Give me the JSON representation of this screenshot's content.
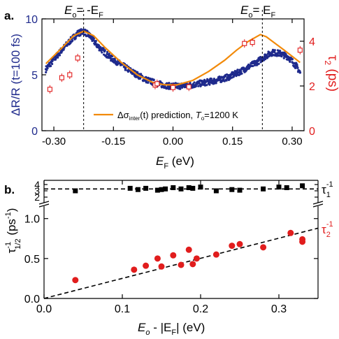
{
  "colors": {
    "dots": "#1f2a8c",
    "prediction": "#f28a0a",
    "tau2": "#e11d1d",
    "tau1": "#000000",
    "left_axis": "#1f2a8c",
    "right_axis": "#e11d1d"
  },
  "chart_data": [
    {
      "panel": "a.",
      "type": "scatter",
      "xlabel_main": "E",
      "xlabel_sub": "F",
      "xlabel_unit": " (eV)",
      "xlim": [
        -0.33,
        0.33
      ],
      "x_ticks": [
        "-0.30",
        "-0.15",
        "0.00",
        "0.15",
        "0.30"
      ],
      "x_tick_values": [
        -0.3,
        -0.15,
        0.0,
        0.15,
        0.3
      ],
      "ylabel_left": "ΔR/R (t=100 fs)",
      "ylim_left": [
        0,
        10
      ],
      "y_ticks_left": [
        "0",
        "5",
        "10"
      ],
      "y_tick_values_left": [
        0,
        5,
        10
      ],
      "ylabel_right_main": "τ",
      "ylabel_right_sub": "2",
      "ylabel_right_unit": " (ps)",
      "ylim_right": [
        0,
        5
      ],
      "y_ticks_right": [
        "0",
        "2",
        "4"
      ],
      "y_tick_values_right": [
        0,
        2,
        4
      ],
      "annotations": [
        {
          "main": "E",
          "sub": "o",
          "rest": "= -E",
          "sub2": "F",
          "x": -0.225
        },
        {
          "main": "E",
          "sub": "o",
          "rest": "= E",
          "sub2": "F",
          "x": 0.225
        }
      ],
      "vlines_x": [
        -0.225,
        0.225
      ],
      "legend": {
        "prefix": "Δσ",
        "sub": "inter",
        "middle": "(t) prediction, ",
        "t": "T",
        "tsub": "o",
        "value": "=1200 K"
      },
      "series": [
        {
          "axis": "left",
          "style": "dots",
          "x": [
            -0.32,
            -0.29,
            -0.26,
            -0.24,
            -0.225,
            -0.21,
            -0.19,
            -0.16,
            -0.13,
            -0.1,
            -0.07,
            -0.04,
            -0.01,
            0.02,
            0.05,
            0.08,
            0.11,
            0.14,
            0.17,
            0.19,
            0.21,
            0.23,
            0.25,
            0.27,
            0.29,
            0.31,
            0.32
          ],
          "y": [
            5.5,
            6.8,
            8.0,
            8.7,
            8.9,
            8.5,
            7.6,
            6.6,
            5.9,
            5.2,
            4.6,
            4.2,
            4.0,
            4.0,
            4.1,
            4.3,
            4.5,
            4.8,
            5.3,
            5.7,
            6.1,
            6.6,
            7.0,
            6.9,
            6.6,
            5.8,
            5.2
          ]
        },
        {
          "name": "Δσinter(t) prediction, To=1200 K",
          "axis": "left",
          "style": "line",
          "x": [
            -0.32,
            -0.28,
            -0.25,
            -0.225,
            -0.2,
            -0.17,
            -0.13,
            -0.09,
            -0.05,
            -0.02,
            0.01,
            0.05,
            0.09,
            0.13,
            0.16,
            0.19,
            0.22,
            0.235,
            0.25,
            0.28,
            0.32
          ],
          "y": [
            6.0,
            7.4,
            8.5,
            8.9,
            8.5,
            7.4,
            6.1,
            5.0,
            4.3,
            4.1,
            4.1,
            4.5,
            5.3,
            6.3,
            7.2,
            8.0,
            8.6,
            8.4,
            8.0,
            7.2,
            6.1
          ]
        },
        {
          "axis": "right",
          "style": "open-square",
          "x": [
            -0.31,
            -0.28,
            -0.26,
            -0.24,
            -0.045,
            -0.04,
            0.0,
            0.04,
            0.18,
            0.2,
            0.32
          ],
          "y": [
            1.85,
            2.37,
            2.5,
            3.25,
            2.04,
            2.1,
            1.93,
            1.96,
            3.9,
            3.95,
            3.6
          ]
        }
      ]
    },
    {
      "panel": "b.",
      "type": "scatter",
      "xlabel_main": "E",
      "xlabel_sub": "o",
      "xlabel_rest": " - |E",
      "xlabel_sub2": "F",
      "xlabel_unit": "| (eV)",
      "xlim": [
        0,
        0.35
      ],
      "x_ticks": [
        "0.0",
        "0.1",
        "0.2",
        "0.3"
      ],
      "x_tick_values": [
        0.0,
        0.1,
        0.2,
        0.3
      ],
      "ylabel_main": "τ",
      "ylabel_sup": "-1",
      "ylabel_sub": "1/2",
      "ylabel_unit": " (ps",
      "ylabel_unit_sup": "-1",
      "ylabel_close": ")",
      "ylim_lower": [
        0,
        1.05
      ],
      "y_ticks_lower": [
        "0.0",
        "0.5",
        "1.0"
      ],
      "y_tick_values_lower": [
        0.0,
        0.5,
        1.0
      ],
      "y_ticks_upper": [
        "2",
        "3",
        "4"
      ],
      "y_tick_values_upper": [
        2,
        3,
        4
      ],
      "series": [
        {
          "name_main": "τ",
          "name_sub": "1",
          "name_sup": "-1",
          "style": "filled-square",
          "x": [
            0.04,
            0.11,
            0.12,
            0.13,
            0.145,
            0.15,
            0.155,
            0.165,
            0.175,
            0.185,
            0.19,
            0.2,
            0.22,
            0.24,
            0.25,
            0.28,
            0.3,
            0.31,
            0.33
          ],
          "y": [
            3.0,
            3.4,
            3.2,
            3.4,
            3.1,
            3.2,
            3.3,
            3.5,
            3.3,
            3.5,
            3.4,
            3.6,
            3.0,
            3.2,
            3.1,
            3.3,
            3.6,
            3.5,
            3.8
          ]
        },
        {
          "name_main": "τ",
          "name_sub": "2",
          "name_sup": "-1",
          "style": "filled-circle",
          "x": [
            0.04,
            0.115,
            0.13,
            0.145,
            0.15,
            0.165,
            0.175,
            0.185,
            0.19,
            0.195,
            0.22,
            0.24,
            0.25,
            0.28,
            0.315,
            0.33,
            0.33
          ],
          "y": [
            0.23,
            0.36,
            0.41,
            0.5,
            0.4,
            0.54,
            0.42,
            0.61,
            0.43,
            0.5,
            0.55,
            0.66,
            0.68,
            0.64,
            0.82,
            0.71,
            0.74
          ]
        }
      ],
      "fit_lines": [
        {
          "x": [
            0,
            0.35
          ],
          "y": [
            0.0,
            0.88
          ]
        },
        {
          "x": [
            0,
            0.35
          ],
          "y": [
            3.3,
            3.3
          ]
        }
      ]
    }
  ]
}
